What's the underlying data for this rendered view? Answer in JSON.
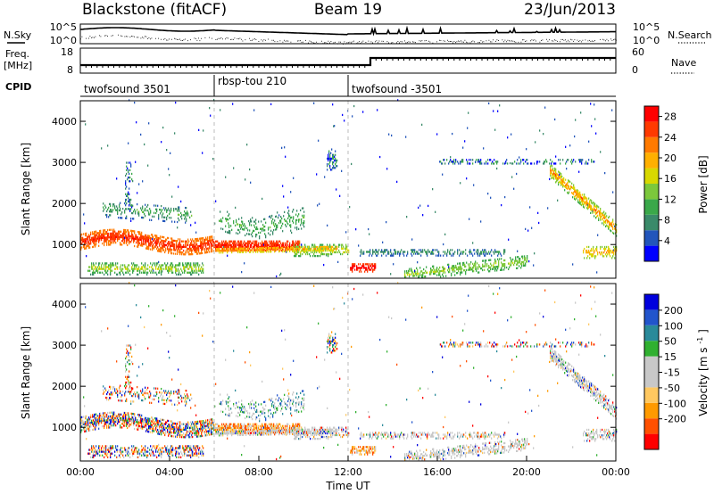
{
  "header": {
    "station": "Blackstone (fitACF)",
    "beam": "Beam 19",
    "date": "23/Jun/2013"
  },
  "strip_labels": {
    "nsky": "N.Sky",
    "nsearch": "N.Search",
    "freq": "Freq.",
    "freq_unit": "[MHz]",
    "nave": "Nave",
    "cpid": "CPID"
  },
  "noise_axis_ticks": [
    "10^5",
    "10^0"
  ],
  "freq_axis_ticks": [
    "18",
    "8"
  ],
  "nave_axis_ticks": [
    "60",
    "0"
  ],
  "cpid_segments": [
    {
      "label": "twofsound 3501",
      "start_hour": 0
    },
    {
      "label": "rbsp-tou 210",
      "start_hour": 6
    },
    {
      "label": "twofsound -3501",
      "start_hour": 12
    }
  ],
  "colors": {
    "power_scale": [
      "#0000ff",
      "#2255bb",
      "#3a8a6a",
      "#3aa84a",
      "#7cc83c",
      "#d8d800",
      "#ffb000",
      "#ff7a00",
      "#ff3a00",
      "#ff0000"
    ],
    "velocity_scale": [
      "#ff0000",
      "#ff5000",
      "#ff9a00",
      "#ffc860",
      "#c8c8c8",
      "#c8c8c8",
      "#30b030",
      "#2a8a9a",
      "#2255cc",
      "#0000dd"
    ],
    "noise_trace": "#000000"
  },
  "chart_data": [
    {
      "type": "heatmap",
      "panel": "power",
      "ylabel": "Slant Range [km]",
      "ylim": [
        180,
        4500
      ],
      "yticks": [
        "1000",
        "2000",
        "3000",
        "4000"
      ],
      "xlim_hours": [
        0,
        24
      ],
      "colorbar_label": "Power [dB]",
      "colorbar_ticks": [
        "4",
        "8",
        "12",
        "16",
        "20",
        "24",
        "28"
      ],
      "colorbar_range": [
        0,
        30
      ]
    },
    {
      "type": "heatmap",
      "panel": "velocity",
      "ylabel": "Slant Range [km]",
      "ylim": [
        180,
        4500
      ],
      "yticks": [
        "1000",
        "2000",
        "3000",
        "4000"
      ],
      "xlim_hours": [
        0,
        24
      ],
      "xtick_labels": [
        "00:00",
        "04:00",
        "08:00",
        "12:00",
        "16:00",
        "20:00",
        "00:00"
      ],
      "xlabel": "Time UT",
      "colorbar_label": "Velocity",
      "colorbar_unit_text": "[m s",
      "colorbar_unit_exp": "-1",
      "colorbar_unit_close": "]",
      "colorbar_ticks": [
        "-200",
        "-100",
        "-50",
        "-15",
        "15",
        "50",
        "100",
        "200"
      ]
    }
  ]
}
